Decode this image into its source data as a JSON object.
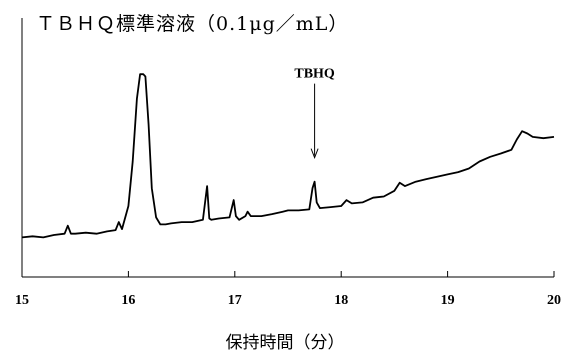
{
  "chart_data": {
    "type": "line",
    "title": "ＴＢＨＱ標準溶液（0.1μg／mL）",
    "xlabel": "保持時間（分）",
    "ylabel": "",
    "xlim": [
      15,
      20
    ],
    "ylim": [
      0,
      100
    ],
    "x_ticks": [
      "15",
      "16",
      "17",
      "18",
      "19",
      "20"
    ],
    "grid": false,
    "annotations": [
      {
        "text": "TBHQ",
        "x": 17.75,
        "y": 43
      }
    ],
    "series": [
      {
        "x": [
          15.0,
          15.1,
          15.2,
          15.3,
          15.4,
          15.43,
          15.46,
          15.5,
          15.6,
          15.7,
          15.8,
          15.88,
          15.91,
          15.94,
          16.0,
          16.04,
          16.08,
          16.11,
          16.14,
          16.16,
          16.19,
          16.22,
          16.26,
          16.3,
          16.35,
          16.4,
          16.5,
          16.6,
          16.7,
          16.74,
          16.76,
          16.78,
          16.85,
          16.95,
          16.99,
          17.01,
          17.04,
          17.1,
          17.12,
          17.15,
          17.25,
          17.35,
          17.45,
          17.5,
          17.6,
          17.7,
          17.73,
          17.75,
          17.77,
          17.8,
          17.9,
          18.0,
          18.05,
          18.1,
          18.2,
          18.3,
          18.4,
          18.5,
          18.55,
          18.6,
          18.7,
          18.8,
          18.9,
          19.0,
          19.1,
          19.2,
          19.3,
          19.4,
          19.5,
          19.6,
          19.65,
          19.7,
          19.75,
          19.8,
          19.9,
          20.0
        ],
        "y": [
          15.3,
          15.7,
          15.3,
          16.2,
          16.7,
          19.8,
          16.7,
          16.7,
          17.1,
          16.7,
          17.6,
          18.1,
          21.2,
          18.5,
          27.4,
          44.6,
          68.8,
          78.3,
          78.3,
          77.4,
          58.8,
          34.3,
          23.0,
          20.3,
          20.3,
          20.7,
          21.2,
          21.2,
          22.1,
          35.1,
          22.6,
          22.1,
          22.6,
          23.0,
          29.7,
          23.5,
          22.1,
          23.5,
          25.2,
          23.5,
          23.5,
          24.3,
          25.2,
          25.7,
          25.7,
          26.1,
          34.3,
          36.8,
          28.8,
          26.6,
          27.0,
          27.4,
          29.7,
          28.4,
          28.8,
          30.6,
          31.1,
          33.3,
          36.4,
          35.1,
          36.8,
          37.8,
          38.7,
          39.6,
          40.5,
          41.9,
          44.6,
          46.4,
          47.7,
          49.1,
          53.1,
          56.3,
          55.4,
          54.1,
          53.6,
          54.1
        ]
      }
    ]
  }
}
